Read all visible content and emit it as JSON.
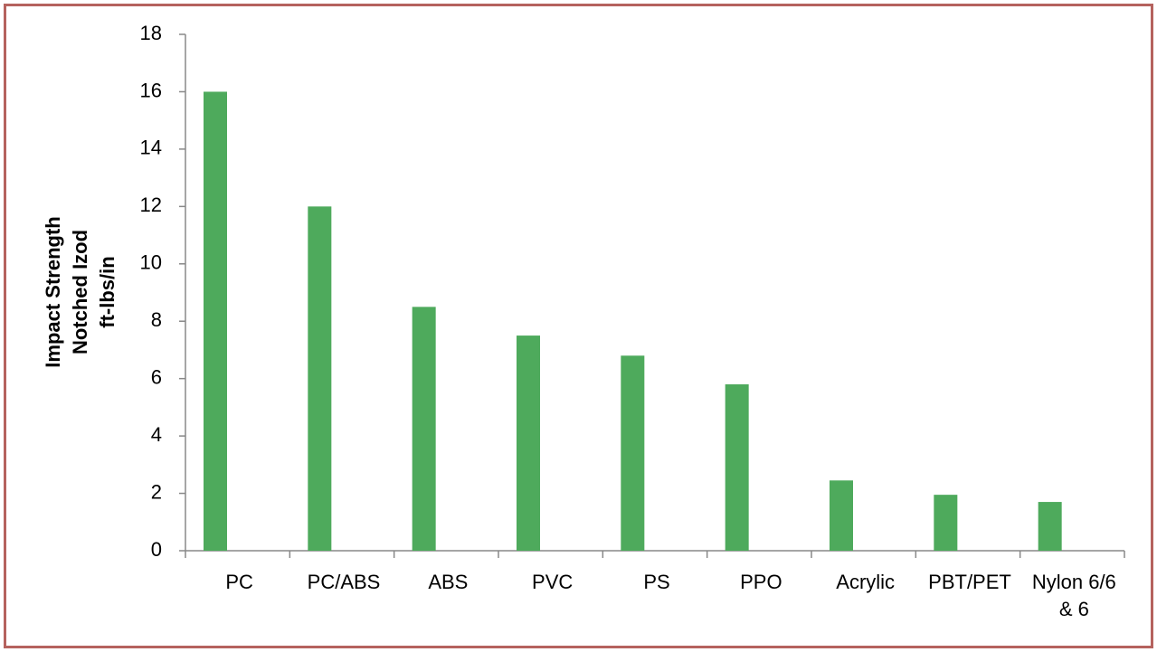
{
  "chart_data": {
    "type": "bar",
    "y_label": [
      "Impact Strength",
      "Notched Izod",
      "ft-lbs/in"
    ],
    "categories": [
      "PC",
      "PC/ABS",
      "ABS",
      "PVC",
      "PS",
      "PPO",
      "Acrylic",
      "PBT/PET",
      "Nylon 6/6 & 6"
    ],
    "values": [
      16,
      12,
      8.5,
      7.5,
      6.8,
      5.8,
      2.45,
      1.95,
      1.7
    ],
    "color": "#4eaa5c",
    "ylim": [
      0,
      18
    ],
    "yticks": [
      0,
      2,
      4,
      6,
      8,
      10,
      12,
      14,
      16,
      18
    ],
    "grid": false
  }
}
